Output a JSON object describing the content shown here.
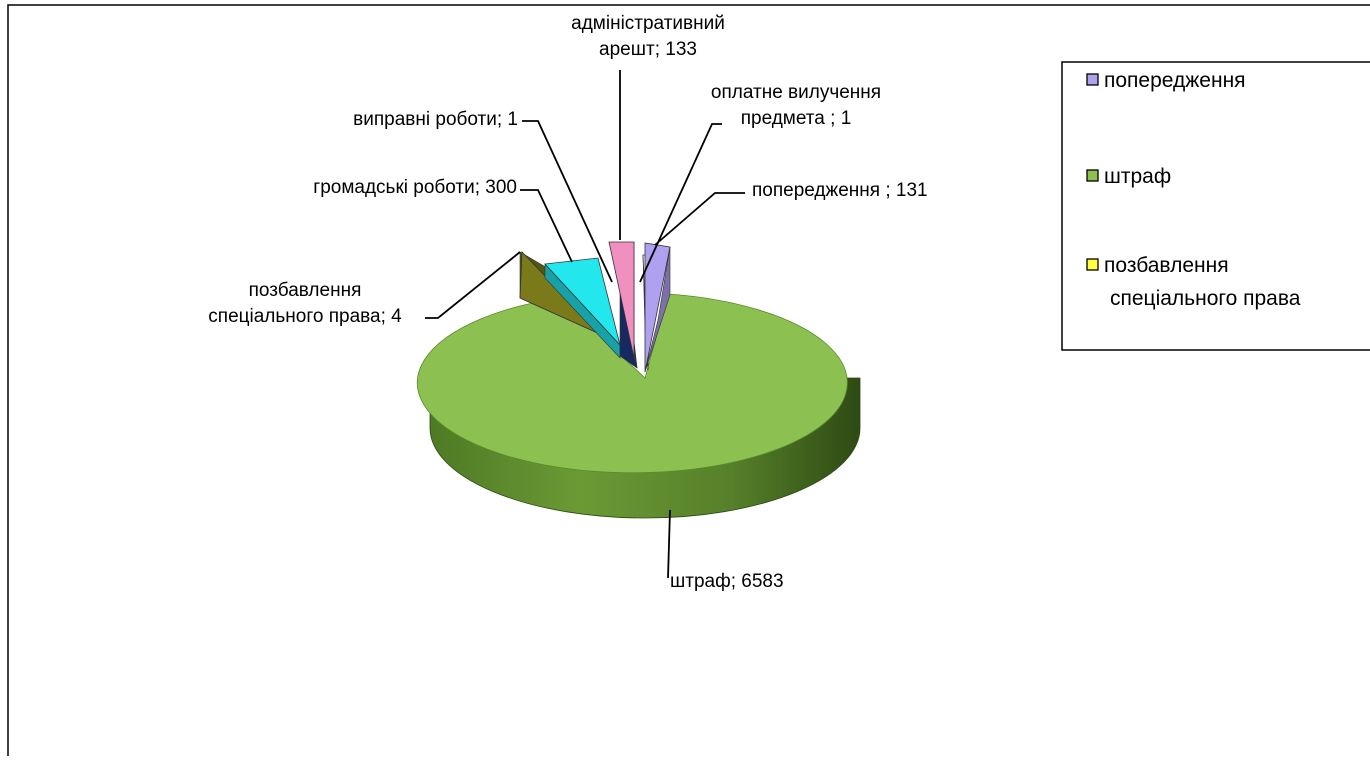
{
  "chart_data": {
    "type": "pie",
    "title": "",
    "slices": [
      {
        "category": "попередження",
        "value": 131,
        "label_lines": [
          "попередження  ; 131"
        ],
        "color": "#b0a0f0"
      },
      {
        "category": "штраф",
        "value": 6583,
        "label_lines": [
          "штраф; 6583"
        ],
        "color": "#8cc152"
      },
      {
        "category": "позбавлення спеціального права",
        "value": 4,
        "label_lines": [
          "позбавлення",
          "спеціального  права; 4"
        ],
        "color": "#7a7a1a"
      },
      {
        "category": "громадські роботи",
        "value": 300,
        "label_lines": [
          "громадські роботи; 300"
        ],
        "color": "#22e8ee"
      },
      {
        "category": "виправні роботи",
        "value": 1,
        "label_lines": [
          "виправні роботи; 1"
        ],
        "color": "#1f3a8a"
      },
      {
        "category": "адміністративний арешт",
        "value": 133,
        "label_lines": [
          "адміністративний",
          "арешт; 133"
        ],
        "color": "#f090c0"
      },
      {
        "category": "оплатне вилучення предмета",
        "value": 1,
        "label_lines": [
          "оплатне вилучення",
          "предмета ; 1"
        ],
        "color": "#ffffff"
      }
    ],
    "legend": {
      "placement": "right",
      "items": [
        {
          "label_lines": [
            "попередження"
          ],
          "color": "#b0a0f0"
        },
        {
          "label_lines": [
            "штраф"
          ],
          "color": "#8cc152"
        },
        {
          "label_lines": [
            "позбавлення",
            "спеціального  права"
          ],
          "color": "#ffff40"
        }
      ]
    }
  }
}
